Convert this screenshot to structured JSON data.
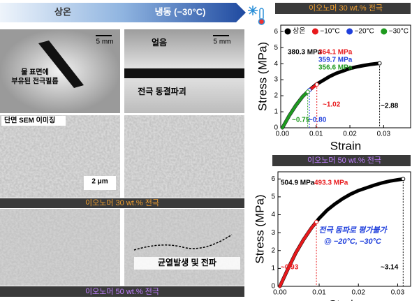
{
  "header": {
    "left": "상온",
    "right": "냉동 (−30°C)"
  },
  "panels": {
    "scale_bar_1": "5 mm",
    "caption_1": [
      "물 표면에",
      "부유된 전극필름"
    ],
    "scale_bar_2": "5 mm",
    "ice": "얼음",
    "caption_2": "전극 동결파괴",
    "sem_label": "단면 SEM 이미징",
    "sem_scale": "2 μm",
    "banner_30": "이오노머 30 wt.% 전극",
    "crack": "균열발생 및 전파",
    "banner_50": "이오노머 50 wt.% 전극"
  },
  "chart_data": [
    {
      "type": "line",
      "title": "이오노머 30 wt.% 전극",
      "title_color": "#f0a030",
      "x_label": "Strain",
      "y_label": "Stress (MPa)",
      "xlim": [
        -0.0005,
        0.038
      ],
      "ylim": [
        0,
        6.4
      ],
      "xticks": [
        {
          "value": 0,
          "label": "0.00"
        },
        {
          "value": 0.01,
          "label": "0.01"
        },
        {
          "value": 0.02,
          "label": "0.02"
        },
        {
          "value": 0.03,
          "label": "0.03"
        }
      ],
      "yticks": [
        0,
        1,
        2,
        3,
        4,
        5,
        6
      ],
      "legend": "top",
      "series": [
        {
          "name": "상온",
          "color": "#000000",
          "x": [
            0,
            0.002,
            0.004,
            0.006,
            0.008,
            0.01,
            0.012,
            0.014,
            0.016,
            0.018,
            0.02,
            0.022,
            0.024,
            0.026,
            0.0288
          ],
          "values": [
            0,
            0.75,
            1.4,
            1.95,
            2.35,
            2.7,
            2.95,
            3.2,
            3.4,
            3.55,
            3.7,
            3.8,
            3.88,
            3.95,
            4.02
          ]
        },
        {
          "name": "−10°C",
          "color": "#e8191c",
          "x": [
            0,
            0.002,
            0.004,
            0.006,
            0.008,
            0.0102
          ],
          "values": [
            0,
            0.75,
            1.4,
            1.95,
            2.35,
            2.7
          ]
        },
        {
          "name": "−20°C",
          "color": "#1f3fdc",
          "x": [
            0,
            0.002,
            0.004,
            0.006,
            0.008
          ],
          "values": [
            0,
            0.75,
            1.4,
            1.95,
            2.35
          ]
        },
        {
          "name": "−30°C",
          "color": "#1e9a1e",
          "x": [
            0,
            0.002,
            0.004,
            0.006,
            0.0075
          ],
          "values": [
            0,
            0.75,
            1.4,
            1.95,
            2.25
          ]
        }
      ],
      "annotations": [
        {
          "text": "380.3 MPa",
          "color": "#000000"
        },
        {
          "text": "364.1 MPa",
          "color": "#e8191c"
        },
        {
          "text": "359.7 MPa",
          "color": "#1f3fdc"
        },
        {
          "text": "356.6 MPa",
          "color": "#1e9a1e"
        },
        {
          "text": "~1.02",
          "color": "#e8191c"
        },
        {
          "text": "~0.75",
          "color": "#1e9a1e"
        },
        {
          "text": "~0.80",
          "color": "#1f3fdc"
        },
        {
          "text": "~2.88",
          "color": "#000000"
        }
      ]
    },
    {
      "type": "line",
      "title": "이오노머 50 wt.% 전극",
      "title_color": "#c080ff",
      "x_label": "Strain",
      "y_label": "Stress (MPa)",
      "xlim": [
        -0.0005,
        0.0333
      ],
      "ylim": [
        0,
        6.4
      ],
      "xticks": [
        {
          "value": 0,
          "label": "0.00"
        },
        {
          "value": 0.01,
          "label": "0.01"
        },
        {
          "value": 0.02,
          "label": "0.02"
        },
        {
          "value": 0.03,
          "label": "0.03"
        }
      ],
      "yticks": [
        0,
        1,
        2,
        3,
        4,
        5,
        6
      ],
      "series": [
        {
          "color": "#000000",
          "x": [
            0,
            0.002,
            0.004,
            0.006,
            0.008,
            0.01,
            0.012,
            0.014,
            0.016,
            0.018,
            0.02,
            0.022,
            0.024,
            0.026,
            0.028,
            0.03,
            0.0314
          ],
          "values": [
            0,
            0.95,
            1.85,
            2.6,
            3.25,
            3.8,
            4.25,
            4.6,
            4.9,
            5.15,
            5.35,
            5.5,
            5.65,
            5.78,
            5.88,
            5.95,
            6.0
          ]
        },
        {
          "color": "#e8191c",
          "x": [
            0,
            0.002,
            0.004,
            0.006,
            0.008,
            0.0093
          ],
          "values": [
            0,
            0.95,
            1.85,
            2.6,
            3.25,
            3.6
          ]
        }
      ],
      "annotations": [
        {
          "text": "504.9 MPa",
          "color": "#000000"
        },
        {
          "text": "493.3 MPa",
          "color": "#e8191c"
        },
        {
          "text": "전극 동파로 평가불가",
          "color": "#1f3fdc"
        },
        {
          "text": "@ −20°C, −30°C",
          "color": "#1f3fdc"
        },
        {
          "text": "~0.93",
          "color": "#e8191c"
        },
        {
          "text": "~3.14",
          "color": "#000000"
        }
      ]
    }
  ]
}
